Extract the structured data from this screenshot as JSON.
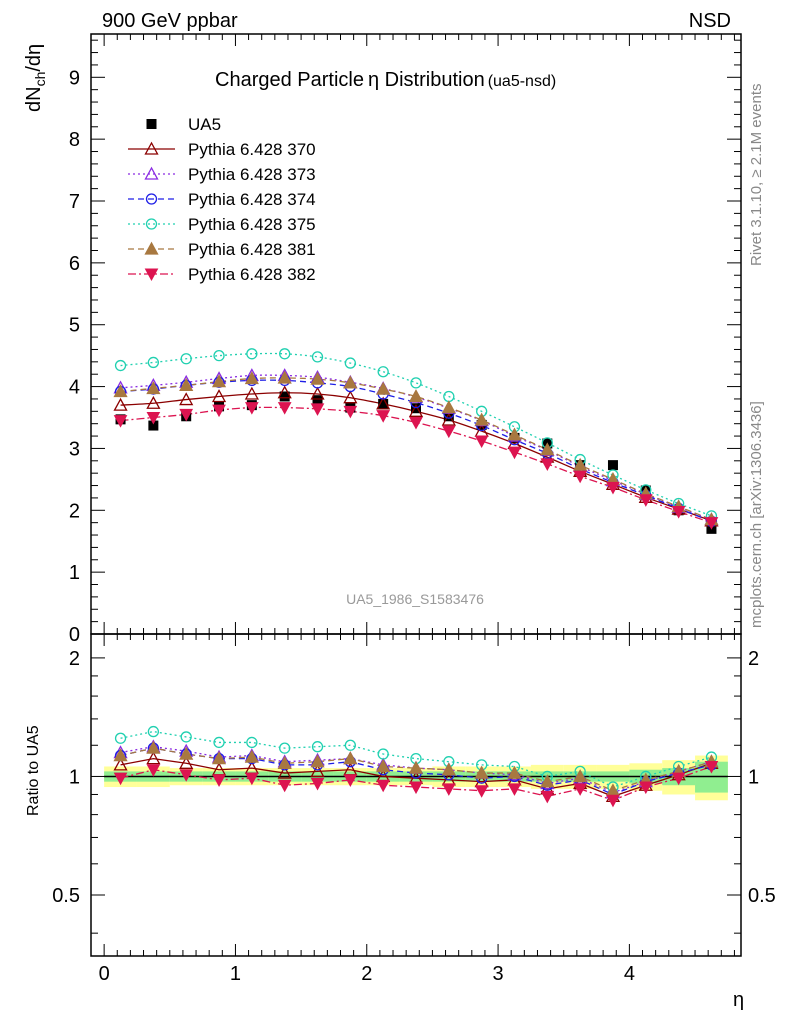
{
  "header": {
    "left_label": "900 GeV ppbar",
    "right_label": "NSD"
  },
  "side_labels": {
    "rivet": "Rivet 3.1.10, ≥ 2.1M events",
    "mcplots": "mcplots.cern.ch [arXiv:1306.3436]"
  },
  "main_panel": {
    "title": "Charged Particle",
    "title_symbol": "η",
    "title_rest": " Distribution",
    "title_suffix": "(ua5-nsd)",
    "ylabel_main": "dN",
    "ylabel_sub": "ch",
    "ylabel_tail": "/dη",
    "watermark": "UA5_1986_S1583476"
  },
  "ratio_panel": {
    "ylabel": "Ratio to UA5"
  },
  "xlabel": "η",
  "colors": {
    "UA5": "#000000",
    "370": "#8b0000",
    "373": "#8a2be2",
    "374": "#1e1ee6",
    "375": "#20d0b0",
    "381": "#a87840",
    "382": "#dc1450",
    "band_yellow": "#ffff99",
    "band_green": "#90ee90"
  },
  "chart_data": [
    {
      "type": "line",
      "panel": "main",
      "xlim": [
        -0.1,
        4.85
      ],
      "ylim": [
        0,
        9.7
      ],
      "xticks": [
        "0",
        "1",
        "2",
        "3",
        "4"
      ],
      "yticks": [
        "0",
        "1",
        "2",
        "3",
        "4",
        "5",
        "6",
        "7",
        "8",
        "9"
      ],
      "x": [
        0.125,
        0.375,
        0.625,
        0.875,
        1.125,
        1.375,
        1.625,
        1.875,
        2.125,
        2.375,
        2.625,
        2.875,
        3.125,
        3.375,
        3.625,
        3.875,
        4.125,
        4.375,
        4.625
      ],
      "series": [
        {
          "name": "UA5",
          "key": "UA5",
          "marker": "square-filled",
          "line": "none",
          "values": [
            3.47,
            3.37,
            3.52,
            3.68,
            3.7,
            3.84,
            3.78,
            3.66,
            3.72,
            3.65,
            3.52,
            3.38,
            3.17,
            3.08,
            2.73,
            2.73,
            2.32,
            2.0,
            1.7
          ]
        },
        {
          "name": "Pythia 6.428 370",
          "key": "370",
          "marker": "triangle-up-open",
          "line": "solid",
          "values": [
            3.7,
            3.73,
            3.79,
            3.84,
            3.88,
            3.9,
            3.88,
            3.82,
            3.72,
            3.6,
            3.46,
            3.28,
            3.08,
            2.86,
            2.63,
            2.42,
            2.21,
            2.02,
            1.83
          ]
        },
        {
          "name": "Pythia 6.428 373",
          "key": "373",
          "marker": "triangle-up-open",
          "line": "dotted",
          "values": [
            3.98,
            4.02,
            4.07,
            4.13,
            4.18,
            4.18,
            4.15,
            4.07,
            3.97,
            3.83,
            3.65,
            3.45,
            3.2,
            2.97,
            2.71,
            2.48,
            2.26,
            2.05,
            1.85
          ]
        },
        {
          "name": "Pythia 6.428 374",
          "key": "374",
          "marker": "circle-open",
          "line": "dashed",
          "values": [
            3.92,
            3.96,
            4.02,
            4.07,
            4.1,
            4.1,
            4.06,
            4.0,
            3.88,
            3.74,
            3.57,
            3.37,
            3.14,
            2.92,
            2.67,
            2.45,
            2.24,
            2.03,
            1.82
          ]
        },
        {
          "name": "Pythia 6.428 375",
          "key": "375",
          "marker": "circle-open",
          "line": "dotted",
          "values": [
            4.34,
            4.39,
            4.45,
            4.5,
            4.53,
            4.53,
            4.48,
            4.38,
            4.24,
            4.06,
            3.84,
            3.6,
            3.35,
            3.09,
            2.82,
            2.57,
            2.33,
            2.11,
            1.91
          ]
        },
        {
          "name": "Pythia 6.428 381",
          "key": "381",
          "marker": "triangle-up-filled",
          "line": "dashed",
          "values": [
            3.92,
            3.97,
            4.02,
            4.08,
            4.13,
            4.14,
            4.12,
            4.06,
            3.96,
            3.84,
            3.66,
            3.46,
            3.22,
            2.98,
            2.73,
            2.5,
            2.27,
            2.06,
            1.85
          ]
        },
        {
          "name": "Pythia 6.428 382",
          "key": "382",
          "marker": "triangle-down-filled",
          "line": "dashdot",
          "values": [
            3.45,
            3.5,
            3.55,
            3.62,
            3.66,
            3.66,
            3.64,
            3.6,
            3.53,
            3.42,
            3.28,
            3.12,
            2.94,
            2.75,
            2.55,
            2.37,
            2.17,
            1.98,
            1.8
          ]
        }
      ]
    },
    {
      "type": "line",
      "panel": "ratio",
      "xlim": [
        -0.1,
        4.85
      ],
      "ylim": [
        0.35,
        2.3
      ],
      "xticks": [
        "0",
        "1",
        "2",
        "3",
        "4"
      ],
      "yticks": [
        "0.5",
        "1",
        "2"
      ],
      "ylabel": "Ratio to UA5",
      "band_yellow_halfwidth": [
        0.06,
        0.06,
        0.05,
        0.05,
        0.05,
        0.05,
        0.05,
        0.05,
        0.05,
        0.05,
        0.06,
        0.06,
        0.06,
        0.07,
        0.07,
        0.07,
        0.08,
        0.1,
        0.13
      ],
      "band_green_halfwidth": [
        0.03,
        0.03,
        0.03,
        0.03,
        0.03,
        0.03,
        0.03,
        0.03,
        0.03,
        0.03,
        0.03,
        0.03,
        0.03,
        0.03,
        0.03,
        0.03,
        0.04,
        0.05,
        0.09
      ],
      "series": [
        {
          "name": "Pythia 6.428 370",
          "key": "370",
          "values": [
            1.07,
            1.11,
            1.08,
            1.04,
            1.05,
            1.02,
            1.03,
            1.04,
            1.0,
            0.99,
            0.98,
            0.97,
            0.98,
            0.93,
            0.96,
            0.89,
            0.95,
            1.01,
            1.08
          ]
        },
        {
          "name": "Pythia 6.428 373",
          "key": "373",
          "values": [
            1.15,
            1.19,
            1.16,
            1.12,
            1.13,
            1.09,
            1.1,
            1.11,
            1.07,
            1.05,
            1.04,
            1.02,
            1.01,
            0.96,
            0.99,
            0.91,
            0.97,
            1.03,
            1.09
          ]
        },
        {
          "name": "Pythia 6.428 374",
          "key": "374",
          "values": [
            1.13,
            1.18,
            1.14,
            1.11,
            1.11,
            1.07,
            1.07,
            1.09,
            1.04,
            1.02,
            1.01,
            0.99,
            1.0,
            0.95,
            0.98,
            0.9,
            0.97,
            1.02,
            1.07
          ]
        },
        {
          "name": "Pythia 6.428 375",
          "key": "375",
          "values": [
            1.25,
            1.3,
            1.26,
            1.22,
            1.22,
            1.18,
            1.19,
            1.2,
            1.14,
            1.11,
            1.09,
            1.07,
            1.06,
            1.0,
            1.03,
            0.94,
            1.0,
            1.06,
            1.12
          ]
        },
        {
          "name": "Pythia 6.428 381",
          "key": "381",
          "values": [
            1.13,
            1.18,
            1.14,
            1.11,
            1.12,
            1.08,
            1.09,
            1.11,
            1.06,
            1.05,
            1.04,
            1.02,
            1.02,
            0.97,
            1.0,
            0.92,
            0.98,
            1.03,
            1.09
          ]
        },
        {
          "name": "Pythia 6.428 382",
          "key": "382",
          "values": [
            0.99,
            1.04,
            1.01,
            0.98,
            0.99,
            0.95,
            0.96,
            0.98,
            0.95,
            0.94,
            0.93,
            0.92,
            0.93,
            0.89,
            0.93,
            0.87,
            0.94,
            0.99,
            1.06
          ]
        }
      ]
    }
  ]
}
